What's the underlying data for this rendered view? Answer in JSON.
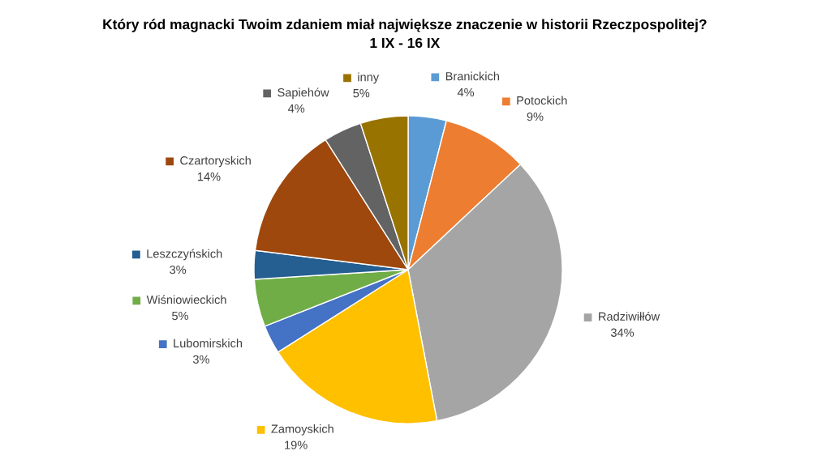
{
  "chart_data": {
    "type": "pie",
    "title": "Który ród magnacki Twoim zdaniem miał największe znaczenie w historii Rzeczpospolitej?",
    "subtitle": "1 IX - 16 IX",
    "categories": [
      "Branickich",
      "Potockich",
      "Radziwiłłów",
      "Zamoyskich",
      "Lubomirskich",
      "Wiśniowieckich",
      "Leszczyńskich",
      "Czartoryskich",
      "Sapiehów",
      "inny"
    ],
    "values": [
      4,
      9,
      34,
      19,
      3,
      5,
      3,
      14,
      4,
      5
    ],
    "value_labels": [
      "4%",
      "9%",
      "34%",
      "19%",
      "3%",
      "5%",
      "3%",
      "14%",
      "4%",
      "5%"
    ],
    "colors": [
      "#5b9bd5",
      "#ed7d31",
      "#a5a5a5",
      "#ffc000",
      "#4472c4",
      "#70ad47",
      "#255e91",
      "#9e480e",
      "#636363",
      "#997300"
    ],
    "legend": "left"
  }
}
